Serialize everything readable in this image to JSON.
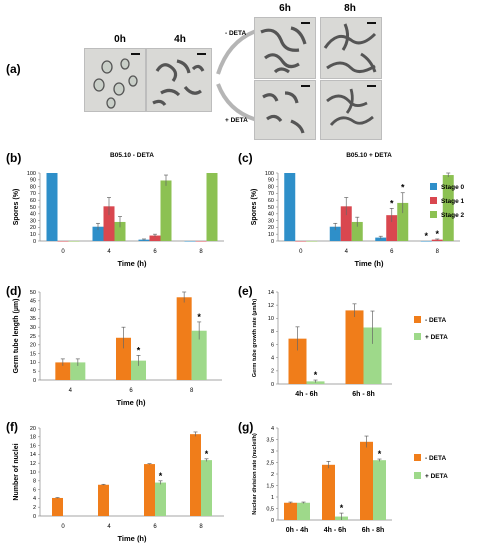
{
  "panel_a": {
    "label": "(a)",
    "times": {
      "t0": "0h",
      "t4": "4h",
      "t6": "6h",
      "t8": "8h"
    },
    "minus_deta": "- DETA",
    "plus_deta": "+ DETA"
  },
  "colors": {
    "stage0": "#2e8fc9",
    "stage1": "#d9474f",
    "stage2": "#8cc152",
    "minus": "#f07d1a",
    "plus": "#9ed98a"
  },
  "chart_data": [
    {
      "id": "b",
      "panel_label": "(b)",
      "type": "bar",
      "title": "B05.10 - DETA",
      "xlabel": "Time (h)",
      "ylabel": "Spores (%)",
      "ylim": [
        0,
        100
      ],
      "yticks": [
        0,
        10,
        20,
        30,
        40,
        50,
        60,
        70,
        80,
        90,
        100
      ],
      "categories": [
        "0",
        "4",
        "6",
        "8"
      ],
      "series": [
        {
          "name": "Stage 0",
          "values": [
            100,
            21,
            2,
            0
          ],
          "errors": [
            0,
            5,
            1,
            0
          ]
        },
        {
          "name": "Stage 1",
          "values": [
            0,
            51,
            8,
            0
          ],
          "errors": [
            0,
            13,
            2,
            0
          ]
        },
        {
          "name": "Stage 2",
          "values": [
            0,
            28,
            89,
            100
          ],
          "errors": [
            0,
            8,
            8,
            0
          ]
        }
      ],
      "stars": []
    },
    {
      "id": "c",
      "panel_label": "(c)",
      "type": "bar",
      "title": "B05.10 + DETA",
      "xlabel": "Time (h)",
      "ylabel": "Spores (%)",
      "ylim": [
        0,
        100
      ],
      "yticks": [
        0,
        10,
        20,
        30,
        40,
        50,
        60,
        70,
        80,
        90,
        100
      ],
      "categories": [
        "0",
        "4",
        "6",
        "8"
      ],
      "series": [
        {
          "name": "Stage 0",
          "values": [
            100,
            21,
            5,
            0
          ],
          "errors": [
            0,
            5,
            2,
            0
          ]
        },
        {
          "name": "Stage 1",
          "values": [
            0,
            51,
            38,
            2
          ],
          "errors": [
            0,
            13,
            10,
            1
          ]
        },
        {
          "name": "Stage 2",
          "values": [
            0,
            28,
            56,
            97
          ],
          "errors": [
            0,
            7,
            15,
            3
          ]
        }
      ],
      "stars": [
        {
          "series": 1,
          "cat": 2
        },
        {
          "series": 2,
          "cat": 2
        },
        {
          "series": 0,
          "cat": 3
        },
        {
          "series": 1,
          "cat": 3
        }
      ],
      "legend": [
        "Stage 0",
        "Stage 1",
        "Stage 2"
      ]
    },
    {
      "id": "d",
      "panel_label": "(d)",
      "type": "bar",
      "xlabel": "Time (h)",
      "ylabel": "Germ tube length (µm)",
      "ylim": [
        0,
        50
      ],
      "yticks": [
        0,
        5,
        10,
        15,
        20,
        25,
        30,
        35,
        40,
        45,
        50
      ],
      "categories": [
        "4",
        "6",
        "8"
      ],
      "series": [
        {
          "name": "- DETA",
          "values": [
            10,
            24,
            47
          ],
          "errors": [
            2,
            6,
            3
          ]
        },
        {
          "name": "+ DETA",
          "values": [
            10,
            11,
            28
          ],
          "errors": [
            2,
            3,
            5
          ]
        }
      ],
      "stars": [
        {
          "series": 1,
          "cat": 1
        },
        {
          "series": 1,
          "cat": 2
        }
      ]
    },
    {
      "id": "e",
      "panel_label": "(e)",
      "type": "bar",
      "xlabel": "",
      "ylabel": "Germ tube growth rate (µm/h)",
      "ylim": [
        0,
        14
      ],
      "yticks": [
        0,
        2,
        4,
        6,
        8,
        10,
        12,
        14
      ],
      "categories": [
        "4h - 6h",
        "6h - 8h"
      ],
      "series": [
        {
          "name": "- DETA",
          "values": [
            6.9,
            11.2
          ],
          "errors": [
            1.8,
            1.0
          ]
        },
        {
          "name": "+ DETA",
          "values": [
            0.4,
            8.6
          ],
          "errors": [
            0.2,
            2.5
          ]
        }
      ],
      "stars": [
        {
          "series": 1,
          "cat": 0
        }
      ],
      "legend": [
        "- DETA",
        "+ DETA"
      ]
    },
    {
      "id": "f",
      "panel_label": "(f)",
      "type": "bar",
      "xlabel": "Time (h)",
      "ylabel": "Number of nuclei",
      "ylim": [
        0,
        20
      ],
      "yticks": [
        0,
        2,
        4,
        6,
        8,
        10,
        12,
        14,
        16,
        18,
        20
      ],
      "categories": [
        "0",
        "4",
        "6",
        "8"
      ],
      "series": [
        {
          "name": "- DETA",
          "values": [
            4.1,
            7.1,
            11.8,
            18.6
          ],
          "errors": [
            0.1,
            0.1,
            0.1,
            0.5
          ]
        },
        {
          "name": "+ DETA",
          "values": [
            null,
            null,
            7.6,
            12.7
          ],
          "errors": [
            0,
            0,
            0.4,
            0.3
          ]
        }
      ],
      "stars": [
        {
          "series": 1,
          "cat": 2
        },
        {
          "series": 1,
          "cat": 3
        }
      ]
    },
    {
      "id": "g",
      "panel_label": "(g)",
      "type": "bar",
      "xlabel": "",
      "ylabel": "Nuclear division rate (nuclei/h)",
      "ylim": [
        0,
        4
      ],
      "yticks": [
        "0",
        "0,5",
        "1",
        "1,5",
        "2",
        "2,5",
        "3",
        "3,5",
        "4"
      ],
      "categories": [
        "0h - 4h",
        "4h - 6h",
        "6h - 8h"
      ],
      "series": [
        {
          "name": "- DETA",
          "values": [
            0.75,
            2.4,
            3.4
          ],
          "errors": [
            0.03,
            0.15,
            0.25
          ]
        },
        {
          "name": "+ DETA",
          "values": [
            0.75,
            0.15,
            2.6
          ],
          "errors": [
            0.03,
            0.15,
            0.05
          ]
        }
      ],
      "stars": [
        {
          "series": 1,
          "cat": 1
        },
        {
          "series": 1,
          "cat": 2
        }
      ],
      "legend": [
        "- DETA",
        "+ DETA"
      ]
    }
  ]
}
